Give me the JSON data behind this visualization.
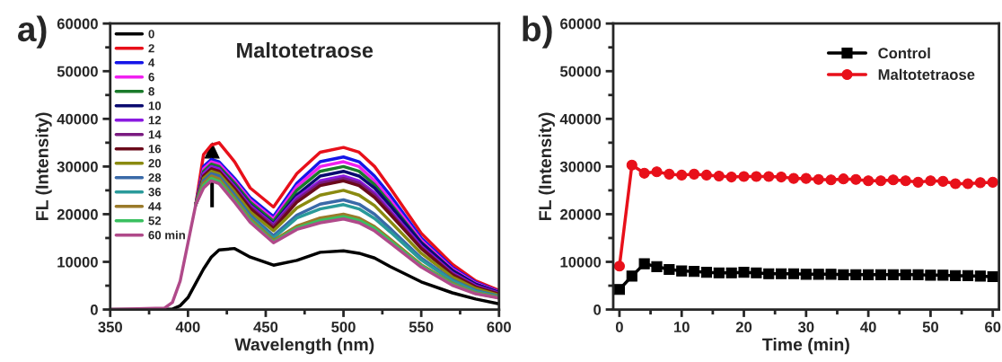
{
  "chart_data": [
    {
      "type": "line",
      "title": "Maltotetraose",
      "xlabel": "Wavelength (nm)",
      "ylabel": "FL (Intensity)",
      "annotations": [
        "a)"
      ],
      "x": [
        350,
        385,
        390,
        395,
        400,
        405,
        410,
        415,
        420,
        430,
        440,
        455,
        470,
        485,
        500,
        510,
        520,
        530,
        550,
        570,
        585,
        600
      ],
      "xlim": [
        350,
        600
      ],
      "xticks": [
        350,
        400,
        450,
        500,
        550,
        600
      ],
      "ylim": [
        0,
        60000
      ],
      "yticks": [
        0,
        10000,
        20000,
        30000,
        40000,
        50000,
        60000
      ],
      "grid": false,
      "legend": "top left",
      "marker": "none",
      "line_style": "solid",
      "series": [
        {
          "name": "0",
          "color": "#000000",
          "values": [
            0,
            0,
            100,
            800,
            2500,
            5500,
            8500,
            11000,
            12500,
            12800,
            11000,
            9300,
            10300,
            12000,
            12300,
            11800,
            10800,
            9000,
            5800,
            3500,
            2200,
            1200
          ]
        },
        {
          "name": "2",
          "color": "#e8101a",
          "values": [
            null,
            null,
            null,
            null,
            null,
            22000,
            32500,
            34500,
            35000,
            31000,
            25500,
            21500,
            28500,
            33000,
            34000,
            33000,
            30000,
            25500,
            16000,
            9500,
            6000,
            4000
          ]
        },
        {
          "name": "4",
          "color": "#1515e8",
          "values": [
            null,
            null,
            null,
            null,
            null,
            22000,
            30000,
            31500,
            31000,
            27500,
            23500,
            19500,
            26500,
            31000,
            32000,
            31000,
            28000,
            24000,
            15000,
            8800,
            5700,
            3800
          ]
        },
        {
          "name": "6",
          "color": "#f020f0",
          "values": [
            null,
            null,
            null,
            null,
            null,
            22000,
            29500,
            31000,
            30500,
            27000,
            23000,
            19000,
            25800,
            30000,
            31000,
            30000,
            27000,
            23000,
            14500,
            8500,
            5500,
            3700
          ]
        },
        {
          "name": "8",
          "color": "#1a7a2a",
          "values": [
            null,
            null,
            null,
            null,
            null,
            22000,
            29000,
            30500,
            30000,
            26500,
            22500,
            18500,
            25000,
            29000,
            30000,
            29000,
            26200,
            22300,
            14100,
            8200,
            5300,
            3500
          ]
        },
        {
          "name": "10",
          "color": "#0a0a70",
          "values": [
            null,
            null,
            null,
            null,
            null,
            22000,
            28500,
            30000,
            29500,
            26000,
            22000,
            18000,
            24000,
            28000,
            29000,
            28000,
            25500,
            21800,
            14000,
            8200,
            5300,
            3600
          ]
        },
        {
          "name": "12",
          "color": "#8a1ae0",
          "values": [
            null,
            null,
            null,
            null,
            null,
            22000,
            28500,
            30000,
            29500,
            25800,
            21800,
            17800,
            23500,
            27000,
            28000,
            27000,
            24500,
            20800,
            13300,
            7700,
            5000,
            3400
          ]
        },
        {
          "name": "14",
          "color": "#7a1a80",
          "values": [
            null,
            null,
            null,
            null,
            null,
            22000,
            28000,
            29500,
            29000,
            25500,
            21500,
            17500,
            23000,
            26500,
            27500,
            26500,
            24000,
            20400,
            13000,
            7500,
            4800,
            3300
          ]
        },
        {
          "name": "16",
          "color": "#6a0a1a",
          "values": [
            null,
            null,
            null,
            null,
            null,
            22000,
            28000,
            29500,
            29000,
            25300,
            21200,
            17000,
            22500,
            26000,
            27000,
            26000,
            23500,
            20000,
            12800,
            7300,
            4700,
            3200
          ]
        },
        {
          "name": "20",
          "color": "#8a8a10",
          "values": [
            null,
            null,
            null,
            null,
            null,
            22000,
            27500,
            29000,
            28500,
            24700,
            20500,
            16500,
            21300,
            24000,
            25000,
            24000,
            21800,
            18500,
            11800,
            6800,
            4400,
            3000
          ]
        },
        {
          "name": "28",
          "color": "#3a6aa8",
          "values": [
            null,
            null,
            null,
            null,
            null,
            22000,
            27000,
            28500,
            28000,
            24000,
            19800,
            15500,
            19800,
            22100,
            23000,
            22100,
            20000,
            17000,
            10800,
            6200,
            4000,
            2800
          ]
        },
        {
          "name": "36",
          "color": "#2a9a9a",
          "values": [
            null,
            null,
            null,
            null,
            null,
            22000,
            26500,
            28000,
            27400,
            23500,
            19300,
            15000,
            19200,
            21100,
            22000,
            21100,
            19100,
            16300,
            10400,
            6000,
            3800,
            2700
          ]
        },
        {
          "name": "44",
          "color": "#9a7a2a",
          "values": [
            null,
            null,
            null,
            null,
            null,
            22000,
            26500,
            28000,
            27400,
            23300,
            19000,
            14500,
            17500,
            19200,
            20000,
            19200,
            17400,
            14800,
            9400,
            5500,
            3500,
            2600
          ]
        },
        {
          "name": "52",
          "color": "#3ac060",
          "values": [
            null,
            null,
            null,
            null,
            null,
            22000,
            26000,
            27500,
            26900,
            22900,
            18600,
            14200,
            17100,
            18700,
            19500,
            18700,
            17000,
            14400,
            9200,
            5300,
            3400,
            2500
          ]
        },
        {
          "name": "60 min",
          "color": "#b04a8a",
          "values": [
            0,
            300,
            1500,
            6000,
            14000,
            22000,
            25500,
            27000,
            26400,
            22500,
            18300,
            14000,
            16800,
            18200,
            19000,
            18200,
            16500,
            14000,
            8900,
            5100,
            3300,
            2400
          ]
        }
      ]
    },
    {
      "type": "line",
      "xlabel": "Time (min)",
      "ylabel": "FL (Intensity)",
      "annotations": [
        "b)"
      ],
      "x": [
        0,
        2,
        4,
        6,
        8,
        10,
        12,
        14,
        16,
        18,
        20,
        22,
        24,
        26,
        28,
        30,
        32,
        34,
        36,
        38,
        40,
        42,
        44,
        46,
        48,
        50,
        52,
        54,
        56,
        58,
        60
      ],
      "xlim": [
        -1,
        61
      ],
      "xticks": [
        0,
        10,
        20,
        30,
        40,
        50,
        60
      ],
      "ylim": [
        0,
        60000
      ],
      "yticks": [
        0,
        10000,
        20000,
        30000,
        40000,
        50000,
        60000
      ],
      "grid": false,
      "legend": "top right",
      "line_style": "solid",
      "series": [
        {
          "name": "Control",
          "color": "#000000",
          "marker": "square",
          "values": [
            4200,
            7000,
            9600,
            9000,
            8400,
            8100,
            8000,
            7800,
            7700,
            7700,
            7800,
            7700,
            7500,
            7500,
            7500,
            7400,
            7400,
            7400,
            7300,
            7300,
            7300,
            7300,
            7300,
            7300,
            7300,
            7200,
            7200,
            7100,
            7100,
            7000,
            6900
          ]
        },
        {
          "name": "Maltotetraose",
          "color": "#e8101a",
          "marker": "circle",
          "values": [
            9100,
            30300,
            28600,
            28900,
            28400,
            28200,
            28400,
            28200,
            28000,
            27800,
            27900,
            27900,
            27900,
            27800,
            27500,
            27500,
            27300,
            27200,
            27400,
            27300,
            27000,
            27000,
            27200,
            27000,
            26700,
            27000,
            26900,
            26400,
            26400,
            26600,
            26700
          ]
        }
      ]
    }
  ]
}
